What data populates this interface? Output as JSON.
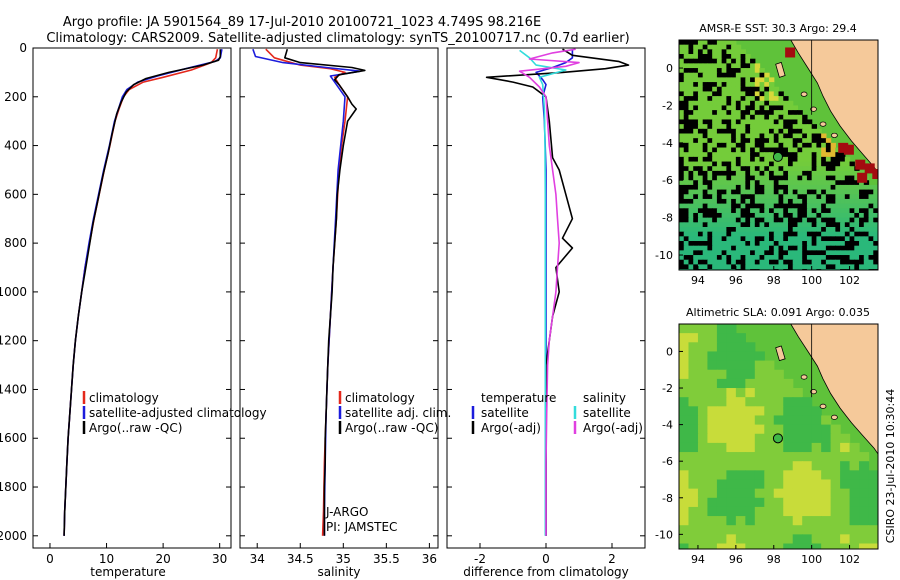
{
  "header": {
    "line1": "Argo profile: JA 5901564_89 17-Jul-2010 20100721_1023 4.749S 98.216E",
    "line2": "Climatology: CARS2009. Satellite-adjusted climatology: synTS_20100717.nc (0.7d earlier)"
  },
  "side_label": "CSIRO 23-Jul-2010 10:30:44",
  "colors": {
    "red": "#e4281c",
    "blue": "#1c1cdc",
    "black": "#000000",
    "cyan": "#33dcdc",
    "magenta": "#e040e0",
    "land": "#f5c99a",
    "frame": "#000000"
  },
  "chart_data": [
    {
      "type": "line",
      "name": "temperature-profile",
      "xlabel": "temperature",
      "xlim": [
        -3,
        32
      ],
      "ylim": [
        2050,
        0
      ],
      "xticks": [
        0,
        10,
        20,
        30
      ],
      "yticks": [
        0,
        200,
        400,
        600,
        800,
        1000,
        1200,
        1400,
        1600,
        1800,
        2000
      ],
      "series": [
        {
          "name": "climatology",
          "color": "red",
          "points": [
            [
              29.6,
              5
            ],
            [
              29.3,
              40
            ],
            [
              28.5,
              60
            ],
            [
              25,
              90
            ],
            [
              20,
              120
            ],
            [
              16.5,
              140
            ],
            [
              14,
              170
            ],
            [
              13,
              200
            ],
            [
              12.2,
              250
            ],
            [
              11.5,
              300
            ],
            [
              10.6,
              400
            ],
            [
              9.6,
              500
            ],
            [
              8.7,
              600
            ],
            [
              7.8,
              700
            ],
            [
              7,
              800
            ],
            [
              6.2,
              900
            ],
            [
              5.6,
              1000
            ],
            [
              5,
              1100
            ],
            [
              4.5,
              1200
            ],
            [
              4.1,
              1300
            ],
            [
              3.8,
              1400
            ],
            [
              3.5,
              1500
            ],
            [
              3.2,
              1600
            ],
            [
              3,
              1700
            ],
            [
              2.8,
              1800
            ],
            [
              2.6,
              1900
            ],
            [
              2.5,
              2000
            ]
          ]
        },
        {
          "name": "satellite-adjusted climatology",
          "color": "blue",
          "points": [
            [
              30.4,
              5
            ],
            [
              30.1,
              40
            ],
            [
              29.2,
              55
            ],
            [
              24,
              85
            ],
            [
              19,
              115
            ],
            [
              15.5,
              140
            ],
            [
              13.6,
              170
            ],
            [
              12.8,
              200
            ],
            [
              12.1,
              250
            ],
            [
              11.4,
              300
            ],
            [
              10.5,
              400
            ],
            [
              9.5,
              500
            ],
            [
              8.6,
              600
            ],
            [
              7.7,
              700
            ],
            [
              6.9,
              800
            ],
            [
              6.2,
              900
            ],
            [
              5.6,
              1000
            ],
            [
              5,
              1100
            ],
            [
              4.5,
              1200
            ],
            [
              4.1,
              1300
            ],
            [
              3.8,
              1400
            ],
            [
              3.5,
              1500
            ],
            [
              3.2,
              1600
            ],
            [
              3,
              1700
            ],
            [
              2.8,
              1800
            ],
            [
              2.6,
              1900
            ],
            [
              2.5,
              2000
            ]
          ]
        },
        {
          "name": "Argo(..raw -QC)",
          "color": "black",
          "points": [
            [
              30.1,
              5
            ],
            [
              30.1,
              35
            ],
            [
              29.8,
              50
            ],
            [
              27,
              70
            ],
            [
              21,
              100
            ],
            [
              17,
              125
            ],
            [
              14.8,
              150
            ],
            [
              13.5,
              180
            ],
            [
              12.6,
              220
            ],
            [
              11.8,
              270
            ],
            [
              11,
              350
            ],
            [
              10.3,
              430
            ],
            [
              9.4,
              520
            ],
            [
              8.5,
              620
            ],
            [
              7.6,
              720
            ],
            [
              6.9,
              820
            ],
            [
              6.2,
              920
            ],
            [
              5.6,
              1000
            ],
            [
              5,
              1100
            ],
            [
              4.5,
              1200
            ],
            [
              4.1,
              1300
            ],
            [
              3.8,
              1400
            ],
            [
              3.5,
              1500
            ],
            [
              3.2,
              1600
            ],
            [
              3,
              1700
            ],
            [
              2.8,
              1800
            ],
            [
              2.6,
              1900
            ],
            [
              2.5,
              2000
            ]
          ]
        }
      ],
      "legend": {
        "position": "lower-right",
        "entries": [
          "climatology",
          "satellite-adjusted climatology",
          "Argo(..raw -QC)"
        ],
        "colors": [
          "red",
          "blue",
          "black"
        ]
      }
    },
    {
      "type": "line",
      "name": "salinity-profile",
      "xlabel": "salinity",
      "xlim": [
        33.8,
        36.1
      ],
      "ylim": [
        2050,
        0
      ],
      "xticks": [
        34,
        34.5,
        35,
        35.5,
        36
      ],
      "xticklabels": [
        "34",
        "34.5",
        "35",
        "35.5",
        "36"
      ],
      "series": [
        {
          "name": "climatology",
          "color": "red",
          "points": [
            [
              34.1,
              5
            ],
            [
              34.2,
              40
            ],
            [
              34.5,
              70
            ],
            [
              34.85,
              85
            ],
            [
              35.02,
              100
            ],
            [
              34.9,
              120
            ],
            [
              34.95,
              150
            ],
            [
              35.05,
              200
            ],
            [
              35.02,
              300
            ],
            [
              34.98,
              400
            ],
            [
              34.95,
              500
            ],
            [
              34.92,
              700
            ],
            [
              34.88,
              900
            ],
            [
              34.85,
              1100
            ],
            [
              34.82,
              1300
            ],
            [
              34.8,
              1500
            ],
            [
              34.78,
              1700
            ],
            [
              34.77,
              1900
            ],
            [
              34.76,
              2000
            ]
          ]
        },
        {
          "name": "satellite adj. clim.",
          "color": "blue",
          "points": [
            [
              33.95,
              5
            ],
            [
              33.98,
              35
            ],
            [
              34.3,
              60
            ],
            [
              34.8,
              80
            ],
            [
              35.2,
              95
            ],
            [
              34.85,
              115
            ],
            [
              34.92,
              150
            ],
            [
              35.02,
              200
            ],
            [
              35,
              300
            ],
            [
              34.97,
              400
            ],
            [
              34.94,
              500
            ],
            [
              34.91,
              700
            ],
            [
              34.88,
              900
            ],
            [
              34.85,
              1100
            ],
            [
              34.82,
              1300
            ],
            [
              34.8,
              1500
            ],
            [
              34.79,
              1700
            ],
            [
              34.78,
              1900
            ],
            [
              34.78,
              2000
            ]
          ]
        },
        {
          "name": "Argo(..raw -QC)",
          "color": "black",
          "points": [
            [
              34.35,
              5
            ],
            [
              34.32,
              40
            ],
            [
              34.5,
              60
            ],
            [
              35.1,
              80
            ],
            [
              35.25,
              92
            ],
            [
              34.95,
              110
            ],
            [
              34.9,
              130
            ],
            [
              34.95,
              150
            ],
            [
              35.05,
              200
            ],
            [
              35.1,
              230
            ],
            [
              35.15,
              250
            ],
            [
              35.05,
              300
            ],
            [
              35,
              400
            ],
            [
              34.96,
              500
            ],
            [
              34.93,
              600
            ],
            [
              34.92,
              700
            ],
            [
              34.9,
              800
            ],
            [
              34.88,
              900
            ],
            [
              34.87,
              1000
            ],
            [
              34.85,
              1100
            ],
            [
              34.83,
              1200
            ],
            [
              34.82,
              1300
            ],
            [
              34.81,
              1400
            ],
            [
              34.8,
              1500
            ],
            [
              34.79,
              1600
            ],
            [
              34.79,
              1700
            ],
            [
              34.78,
              1800
            ],
            [
              34.78,
              1900
            ],
            [
              34.78,
              2000
            ]
          ]
        }
      ],
      "legend": {
        "position": "lower-right",
        "entries": [
          "climatology",
          "satellite adj. clim.",
          "Argo(..raw -QC)"
        ],
        "colors": [
          "red",
          "blue",
          "black"
        ]
      },
      "annotations": [
        "J-ARGO",
        "PI: JAMSTEC"
      ]
    },
    {
      "type": "line",
      "name": "difference-profile",
      "xlabel": "difference from climatology",
      "xlim": [
        -3,
        3
      ],
      "ylim": [
        2050,
        0
      ],
      "xticks": [
        -2,
        0,
        2
      ],
      "series": [
        {
          "name": "temperature satellite",
          "color": "blue",
          "points": [
            [
              0.8,
              5
            ],
            [
              0.8,
              40
            ],
            [
              0.6,
              60
            ],
            [
              0.2,
              80
            ],
            [
              -0.3,
              100
            ],
            [
              -0.1,
              130
            ],
            [
              0,
              150
            ],
            [
              -0.1,
              200
            ],
            [
              -0.05,
              300
            ],
            [
              0,
              500
            ],
            [
              0,
              1000
            ],
            [
              0,
              1500
            ],
            [
              0,
              2000
            ]
          ]
        },
        {
          "name": "temperature Argo(-adj)",
          "color": "black",
          "points": [
            [
              0.5,
              5
            ],
            [
              0.8,
              30
            ],
            [
              2.2,
              55
            ],
            [
              2.5,
              70
            ],
            [
              1.8,
              85
            ],
            [
              0.5,
              100
            ],
            [
              -1.8,
              120
            ],
            [
              -1,
              140
            ],
            [
              -0.4,
              160
            ],
            [
              0,
              200
            ],
            [
              0.1,
              300
            ],
            [
              0.2,
              450
            ],
            [
              0.4,
              500
            ],
            [
              0.6,
              600
            ],
            [
              0.8,
              700
            ],
            [
              0.5,
              780
            ],
            [
              0.8,
              820
            ],
            [
              0.3,
              900
            ],
            [
              0.4,
              1000
            ],
            [
              0.2,
              1100
            ],
            [
              0.1,
              1200
            ],
            [
              0,
              1300
            ],
            [
              0,
              1500
            ],
            [
              0,
              1700
            ],
            [
              0,
              2000
            ]
          ]
        },
        {
          "name": "salinity satellite",
          "color": "cyan",
          "points": [
            [
              -0.8,
              10
            ],
            [
              -0.5,
              40
            ],
            [
              -0.3,
              70
            ],
            [
              0.6,
              90
            ],
            [
              -0.2,
              120
            ],
            [
              -0.1,
              150
            ],
            [
              -0.05,
              250
            ],
            [
              -0.03,
              400
            ],
            [
              -0.02,
              600
            ],
            [
              -0.02,
              1000
            ],
            [
              -0.02,
              1500
            ],
            [
              -0.02,
              2000
            ]
          ]
        },
        {
          "name": "salinity Argo(-adj)",
          "color": "magenta",
          "points": [
            [
              0.9,
              5
            ],
            [
              0.2,
              20
            ],
            [
              -0.5,
              45
            ],
            [
              1,
              60
            ],
            [
              0.6,
              75
            ],
            [
              -0.8,
              95
            ],
            [
              -0.5,
              120
            ],
            [
              -0.2,
              160
            ],
            [
              0,
              200
            ],
            [
              0.05,
              300
            ],
            [
              0.1,
              400
            ],
            [
              0.2,
              500
            ],
            [
              0.3,
              600
            ],
            [
              0.35,
              700
            ],
            [
              0.4,
              800
            ],
            [
              0.35,
              900
            ],
            [
              0.3,
              1000
            ],
            [
              0.2,
              1100
            ],
            [
              0.1,
              1200
            ],
            [
              0.05,
              1300
            ],
            [
              0.02,
              1500
            ],
            [
              0,
              1700
            ],
            [
              0,
              2000
            ]
          ]
        }
      ],
      "legend_left": {
        "title": "temperature",
        "entries": [
          "satellite",
          "Argo(-adj)"
        ],
        "colors": [
          "blue",
          "black"
        ]
      },
      "legend_right": {
        "title": "salinity",
        "entries": [
          "satellite",
          "Argo(-adj)"
        ],
        "colors": [
          "cyan",
          "magenta"
        ]
      }
    },
    {
      "type": "heatmap",
      "name": "amsr-sst-map",
      "title": "AMSR-E SST: 30.3 Argo: 29.4",
      "xlim": [
        93,
        103.5
      ],
      "ylim": [
        -10.8,
        1.5
      ],
      "xticks": [
        94,
        96,
        98,
        100,
        102
      ],
      "yticks": [
        0,
        -2,
        -4,
        -6,
        -8,
        -10
      ],
      "argo_marker": [
        98.22,
        -4.75
      ]
    },
    {
      "type": "heatmap",
      "name": "altimetric-sla-map",
      "title": "Altimetric SLA: 0.091 Argo: 0.035",
      "xlim": [
        93,
        103.5
      ],
      "ylim": [
        -10.8,
        1.5
      ],
      "xticks": [
        94,
        96,
        98,
        100,
        102
      ],
      "yticks": [
        0,
        -2,
        -4,
        -6,
        -8,
        -10
      ],
      "argo_marker": [
        98.22,
        -4.75
      ]
    }
  ]
}
